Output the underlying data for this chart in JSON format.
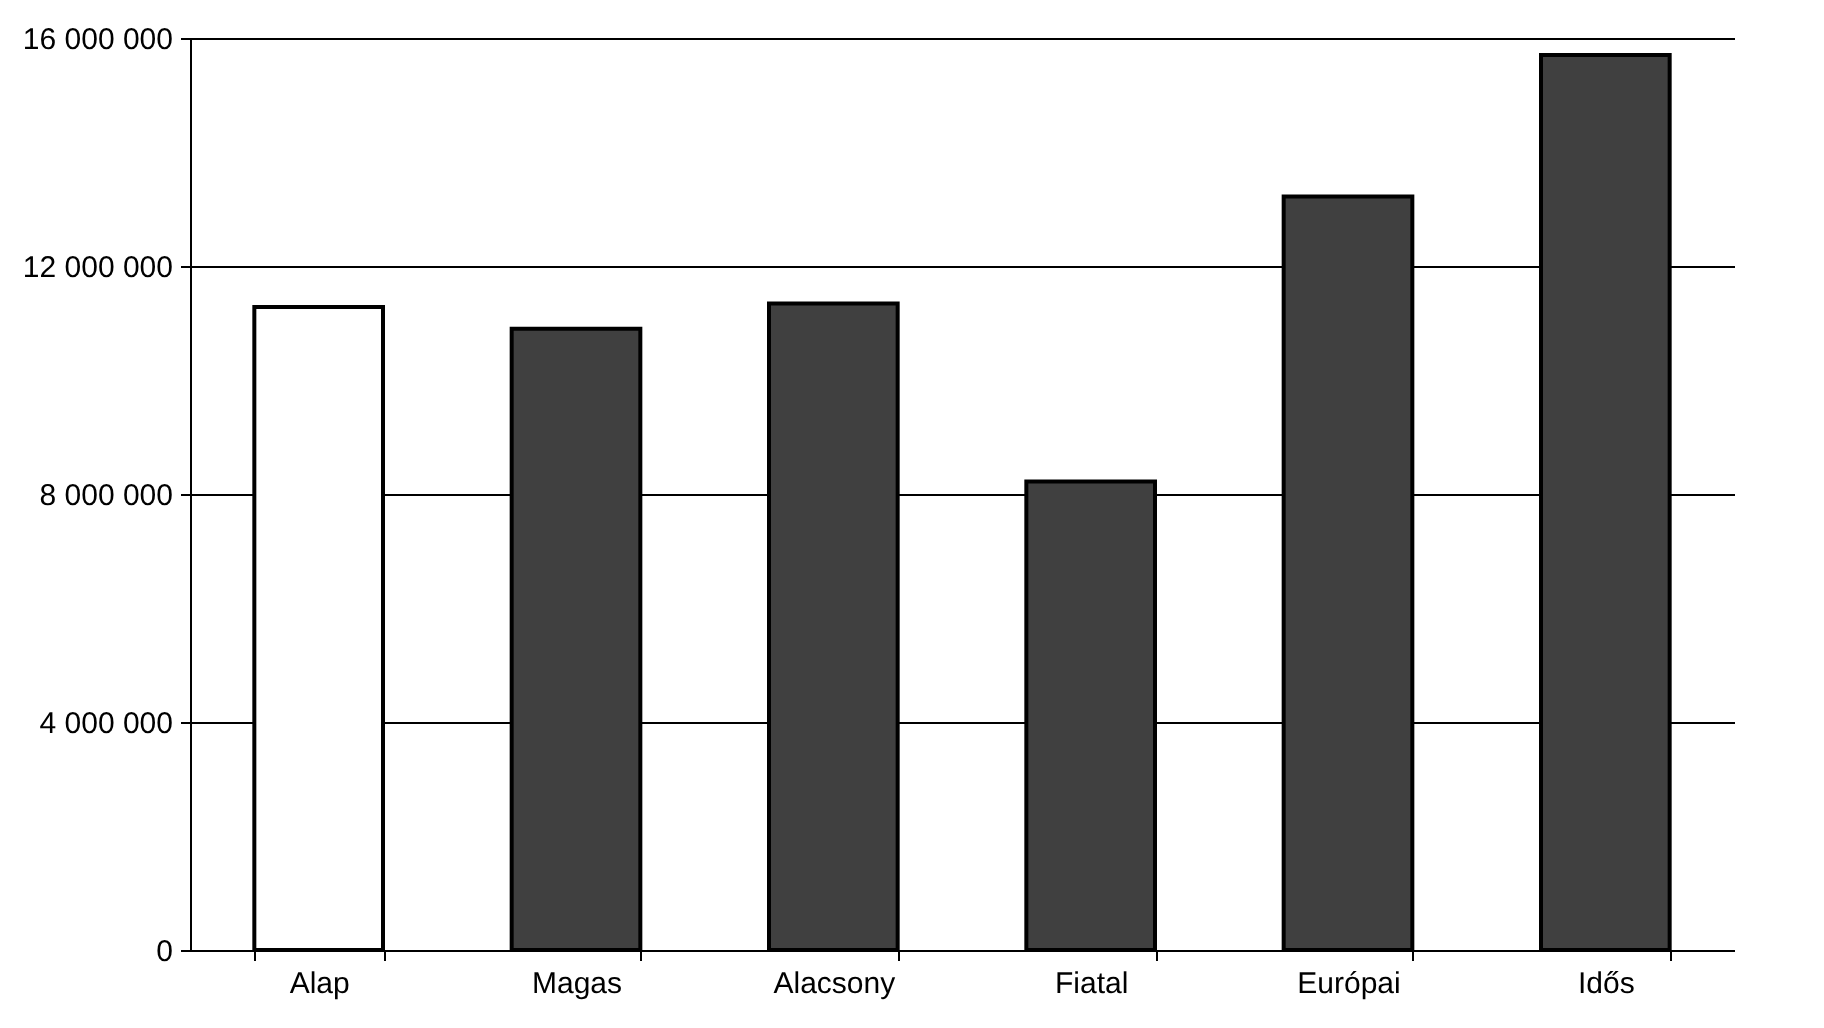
{
  "chart_data": {
    "type": "bar",
    "categories": [
      "Alap",
      "Magas",
      "Alacsony",
      "Fiatal",
      "Európai",
      "Idős"
    ],
    "values": [
      11280000,
      10900000,
      11340000,
      8220000,
      13220000,
      15700000
    ],
    "colors": [
      "#ffffff",
      "#404040",
      "#404040",
      "#404040",
      "#404040",
      "#404040"
    ],
    "ylim": [
      0,
      16000000
    ],
    "yticks": [
      {
        "value": 0,
        "label": "0"
      },
      {
        "value": 4000000,
        "label": "4 000 000"
      },
      {
        "value": 8000000,
        "label": "8 000 000"
      },
      {
        "value": 12000000,
        "label": "12 000 000"
      },
      {
        "value": 16000000,
        "label": "16 000 000"
      }
    ],
    "grid": "y"
  }
}
